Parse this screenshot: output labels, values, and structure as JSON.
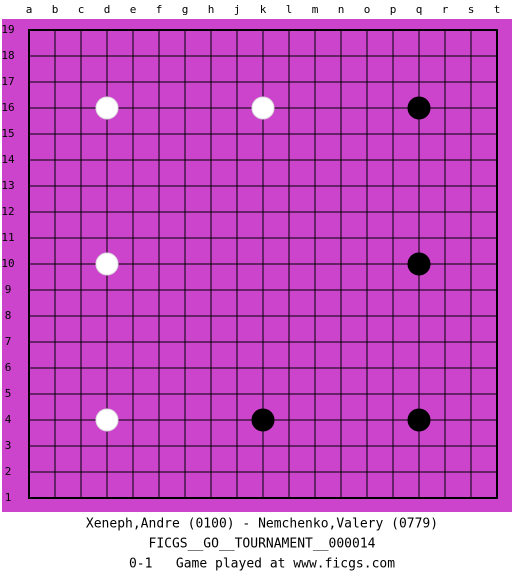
{
  "board": {
    "columns": [
      "a",
      "b",
      "c",
      "d",
      "e",
      "f",
      "g",
      "h",
      "j",
      "k",
      "l",
      "m",
      "n",
      "o",
      "p",
      "q",
      "r",
      "s",
      "t"
    ],
    "rows": [
      "19",
      "18",
      "17",
      "16",
      "15",
      "14",
      "13",
      "12",
      "11",
      "10",
      "9",
      "8",
      "7",
      "6",
      "5",
      "4",
      "3",
      "2",
      "1"
    ],
    "stones": [
      {
        "color": "white",
        "col": "d",
        "row": "16"
      },
      {
        "color": "white",
        "col": "k",
        "row": "16"
      },
      {
        "color": "black",
        "col": "q",
        "row": "16"
      },
      {
        "color": "white",
        "col": "d",
        "row": "10"
      },
      {
        "color": "black",
        "col": "q",
        "row": "10"
      },
      {
        "color": "white",
        "col": "d",
        "row": "4"
      },
      {
        "color": "black",
        "col": "k",
        "row": "4"
      },
      {
        "color": "black",
        "col": "q",
        "row": "4"
      }
    ]
  },
  "caption": {
    "players": "Xeneph,Andre (0100) - Nemchenko,Valery (0779)",
    "event": "FICGS__GO__TOURNAMENT__000014",
    "result": "0-1   Game played at www.ficgs.com"
  }
}
